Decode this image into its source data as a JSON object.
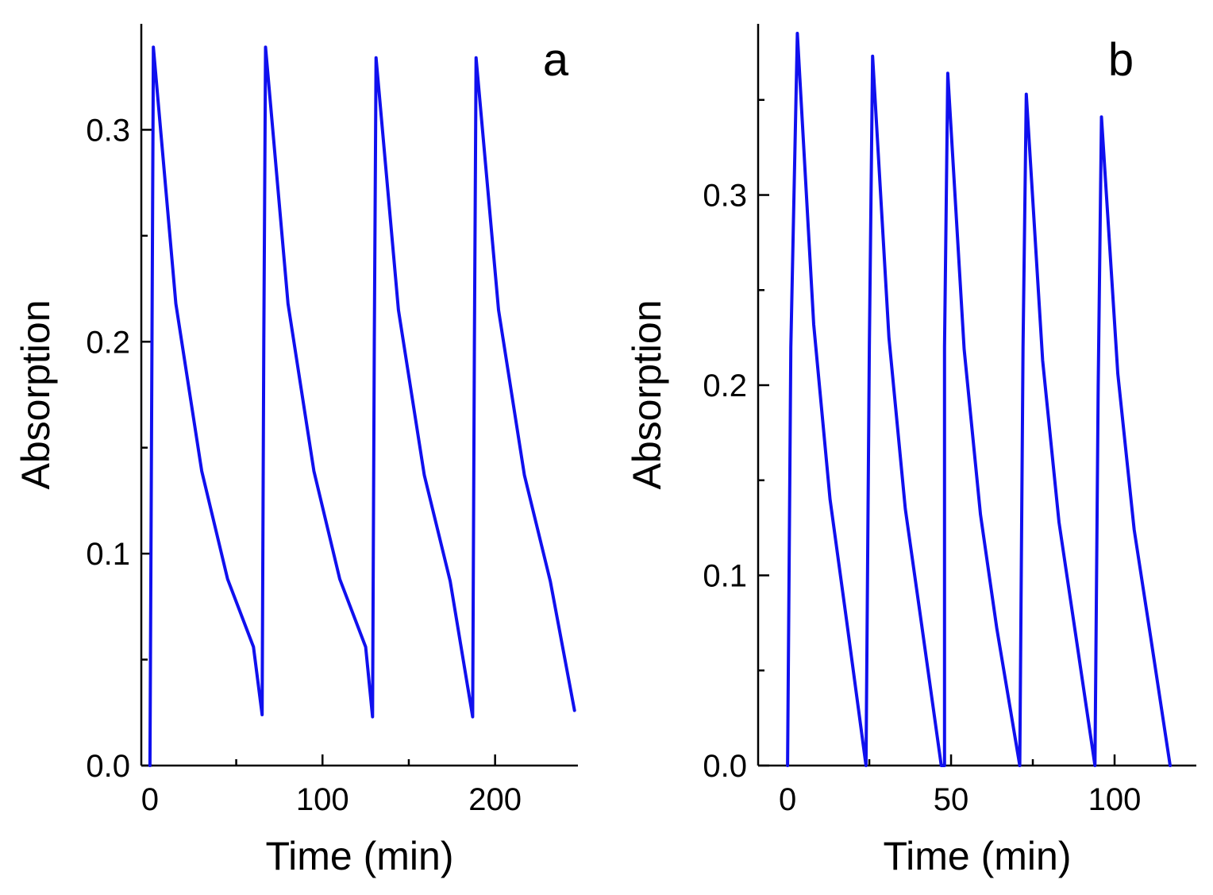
{
  "chart_data": [
    {
      "type": "line",
      "panel_label": "a",
      "xlabel": "Time (min)",
      "ylabel": "Absorption",
      "xlim": [
        -5,
        248
      ],
      "ylim": [
        0,
        0.35
      ],
      "xticks": [
        0,
        50,
        100,
        150,
        200
      ],
      "xtick_labels": [
        "0",
        "",
        "100",
        "",
        "200"
      ],
      "yticks": [
        0,
        0.05,
        0.1,
        0.15,
        0.2,
        0.25,
        0.3
      ],
      "ytick_labels": [
        "0.0",
        "",
        "0.1",
        "",
        "0.2",
        "",
        "0.3"
      ],
      "grid": false,
      "line_color": "#1010ee",
      "series": [
        {
          "name": "absorption",
          "x": [
            0,
            2,
            15,
            30,
            45,
            60,
            65,
            65,
            66,
            67,
            80,
            95,
            110,
            125,
            129,
            129,
            130,
            131,
            144,
            159,
            174,
            187,
            187,
            188,
            189,
            202,
            217,
            232,
            246
          ],
          "y": [
            0,
            0.339,
            0.218,
            0.139,
            0.088,
            0.056,
            0.024,
            0.024,
            0.2,
            0.339,
            0.218,
            0.139,
            0.088,
            0.056,
            0.023,
            0.023,
            0.2,
            0.334,
            0.215,
            0.137,
            0.087,
            0.023,
            0.023,
            0.2,
            0.334,
            0.215,
            0.137,
            0.087,
            0.026
          ]
        }
      ]
    },
    {
      "type": "line",
      "panel_label": "b",
      "xlabel": "Time (min)",
      "ylabel": "Absorption",
      "xlim": [
        -9,
        125
      ],
      "ylim": [
        0,
        0.39
      ],
      "xticks": [
        0,
        25,
        50,
        75,
        100
      ],
      "xtick_labels": [
        "0",
        "",
        "50",
        "",
        "100"
      ],
      "yticks": [
        0,
        0.05,
        0.1,
        0.15,
        0.2,
        0.25,
        0.3,
        0.35
      ],
      "ytick_labels": [
        "0.0",
        "",
        "0.1",
        "",
        "0.2",
        "",
        "0.3",
        ""
      ],
      "grid": false,
      "line_color": "#1010ee",
      "series": [
        {
          "name": "absorption",
          "x": [
            0,
            1,
            3,
            8,
            13,
            18,
            24,
            24,
            25,
            26,
            31,
            36,
            41,
            47,
            48,
            48,
            49,
            54,
            59,
            64,
            71,
            71,
            72,
            73,
            78,
            83,
            88,
            94,
            94,
            95,
            96,
            101,
            106,
            111,
            117
          ],
          "y": [
            0,
            0.22,
            0.385,
            0.232,
            0.14,
            0.077,
            0,
            0,
            0.22,
            0.373,
            0.225,
            0.135,
            0.074,
            0,
            0,
            0.22,
            0.364,
            0.219,
            0.132,
            0.072,
            0,
            0,
            0.22,
            0.353,
            0.213,
            0.128,
            0.07,
            0,
            0,
            0.2,
            0.341,
            0.206,
            0.124,
            0.068,
            0
          ]
        }
      ]
    }
  ]
}
